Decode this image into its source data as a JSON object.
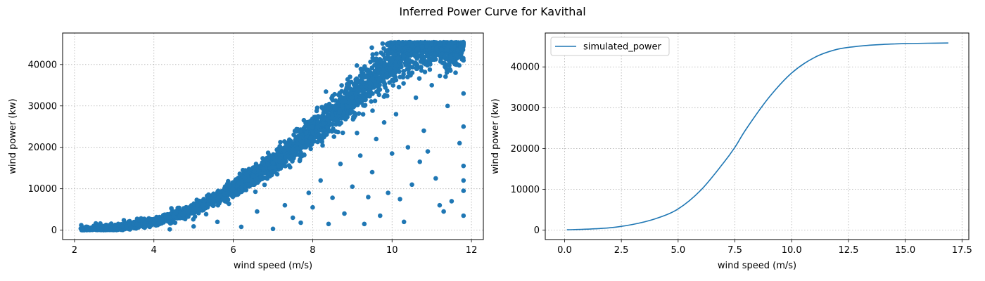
{
  "figure": {
    "title": "Inferred Power Curve for Kavithal"
  },
  "chart_data": [
    {
      "type": "scatter",
      "xlabel": "wind speed (m/s)",
      "ylabel": "wind power (kw)",
      "xlim": [
        1.7,
        12.3
      ],
      "ylim": [
        -2270,
        47600
      ],
      "xticks": [
        2,
        4,
        6,
        8,
        10,
        12
      ],
      "yticks": [
        0,
        10000,
        20000,
        30000,
        40000
      ],
      "grid": true,
      "color": "#1f77b4",
      "points_description": "dense band following curve rising from ~0 kW at 2.2 m/s to ~45000 kW cap near 10 m/s, with scattered low outliers",
      "series": [
        {
          "x": [
            2.2,
            2.5,
            2.8,
            3.0,
            3.3,
            3.6,
            4.0,
            4.5,
            5.0,
            5.5,
            6.0,
            6.5,
            7.0,
            7.5,
            8.0,
            8.5,
            9.0,
            9.5,
            10.0,
            10.5,
            11.0,
            11.5,
            11.8
          ],
          "y": [
            100,
            250,
            450,
            650,
            900,
            1300,
            2000,
            3300,
            5000,
            7200,
            10000,
            13000,
            16200,
            19600,
            23500,
            27800,
            32000,
            36500,
            41000,
            44500,
            45000,
            45000,
            45000
          ]
        }
      ],
      "outliers": [
        {
          "x": 4.4,
          "y": 200
        },
        {
          "x": 5.0,
          "y": 900
        },
        {
          "x": 5.6,
          "y": 2000
        },
        {
          "x": 6.2,
          "y": 800
        },
        {
          "x": 6.6,
          "y": 4500
        },
        {
          "x": 7.0,
          "y": 300
        },
        {
          "x": 7.3,
          "y": 6000
        },
        {
          "x": 7.5,
          "y": 3000
        },
        {
          "x": 7.7,
          "y": 1800
        },
        {
          "x": 7.9,
          "y": 9000
        },
        {
          "x": 8.0,
          "y": 5500
        },
        {
          "x": 8.2,
          "y": 12000
        },
        {
          "x": 8.4,
          "y": 1500
        },
        {
          "x": 8.5,
          "y": 7800
        },
        {
          "x": 8.7,
          "y": 16000
        },
        {
          "x": 8.8,
          "y": 4000
        },
        {
          "x": 9.0,
          "y": 10500
        },
        {
          "x": 9.2,
          "y": 18000
        },
        {
          "x": 9.3,
          "y": 1500
        },
        {
          "x": 9.4,
          "y": 8000
        },
        {
          "x": 9.5,
          "y": 14000
        },
        {
          "x": 9.6,
          "y": 22000
        },
        {
          "x": 9.7,
          "y": 3500
        },
        {
          "x": 9.8,
          "y": 26000
        },
        {
          "x": 9.9,
          "y": 9000
        },
        {
          "x": 10.0,
          "y": 18500
        },
        {
          "x": 10.1,
          "y": 28000
        },
        {
          "x": 10.2,
          "y": 7500
        },
        {
          "x": 10.3,
          "y": 2000
        },
        {
          "x": 10.4,
          "y": 20000
        },
        {
          "x": 10.5,
          "y": 11000
        },
        {
          "x": 10.6,
          "y": 32000
        },
        {
          "x": 10.7,
          "y": 16500
        },
        {
          "x": 10.8,
          "y": 24000
        },
        {
          "x": 10.9,
          "y": 19000
        },
        {
          "x": 11.0,
          "y": 35000
        },
        {
          "x": 11.1,
          "y": 12500
        },
        {
          "x": 11.2,
          "y": 6000
        },
        {
          "x": 11.3,
          "y": 4500
        },
        {
          "x": 11.4,
          "y": 30000
        },
        {
          "x": 11.5,
          "y": 7000
        },
        {
          "x": 11.6,
          "y": 38000
        },
        {
          "x": 11.7,
          "y": 21000
        },
        {
          "x": 11.8,
          "y": 3500
        },
        {
          "x": 11.8,
          "y": 12000
        },
        {
          "x": 11.8,
          "y": 25000
        },
        {
          "x": 11.8,
          "y": 33000
        },
        {
          "x": 11.8,
          "y": 15500
        },
        {
          "x": 11.8,
          "y": 9500
        },
        {
          "x": 11.8,
          "y": 41000
        }
      ]
    },
    {
      "type": "line",
      "xlabel": "wind speed (m/s)",
      "ylabel": "wind power (kw)",
      "xlim": [
        -0.85,
        17.8
      ],
      "ylim": [
        -2300,
        48300
      ],
      "xticks": [
        0.0,
        2.5,
        5.0,
        7.5,
        10.0,
        12.5,
        15.0,
        17.5
      ],
      "xtick_labels": [
        "0.0",
        "2.5",
        "5.0",
        "7.5",
        "10.0",
        "12.5",
        "15.0",
        "17.5"
      ],
      "yticks": [
        0,
        10000,
        20000,
        30000,
        40000
      ],
      "grid": true,
      "legend_position": "upper-left",
      "series": [
        {
          "name": "simulated_power",
          "color": "#1f77b4",
          "x": [
            0.1,
            1.0,
            2.0,
            3.0,
            4.0,
            5.0,
            6.0,
            7.0,
            7.5,
            8.0,
            9.0,
            10.0,
            11.0,
            12.0,
            13.0,
            14.0,
            15.0,
            16.0,
            16.9
          ],
          "y": [
            100,
            250,
            600,
            1400,
            2800,
            5200,
            9800,
            16500,
            20300,
            24800,
            32500,
            38500,
            42300,
            44300,
            45100,
            45500,
            45700,
            45800,
            45850
          ]
        }
      ]
    }
  ]
}
